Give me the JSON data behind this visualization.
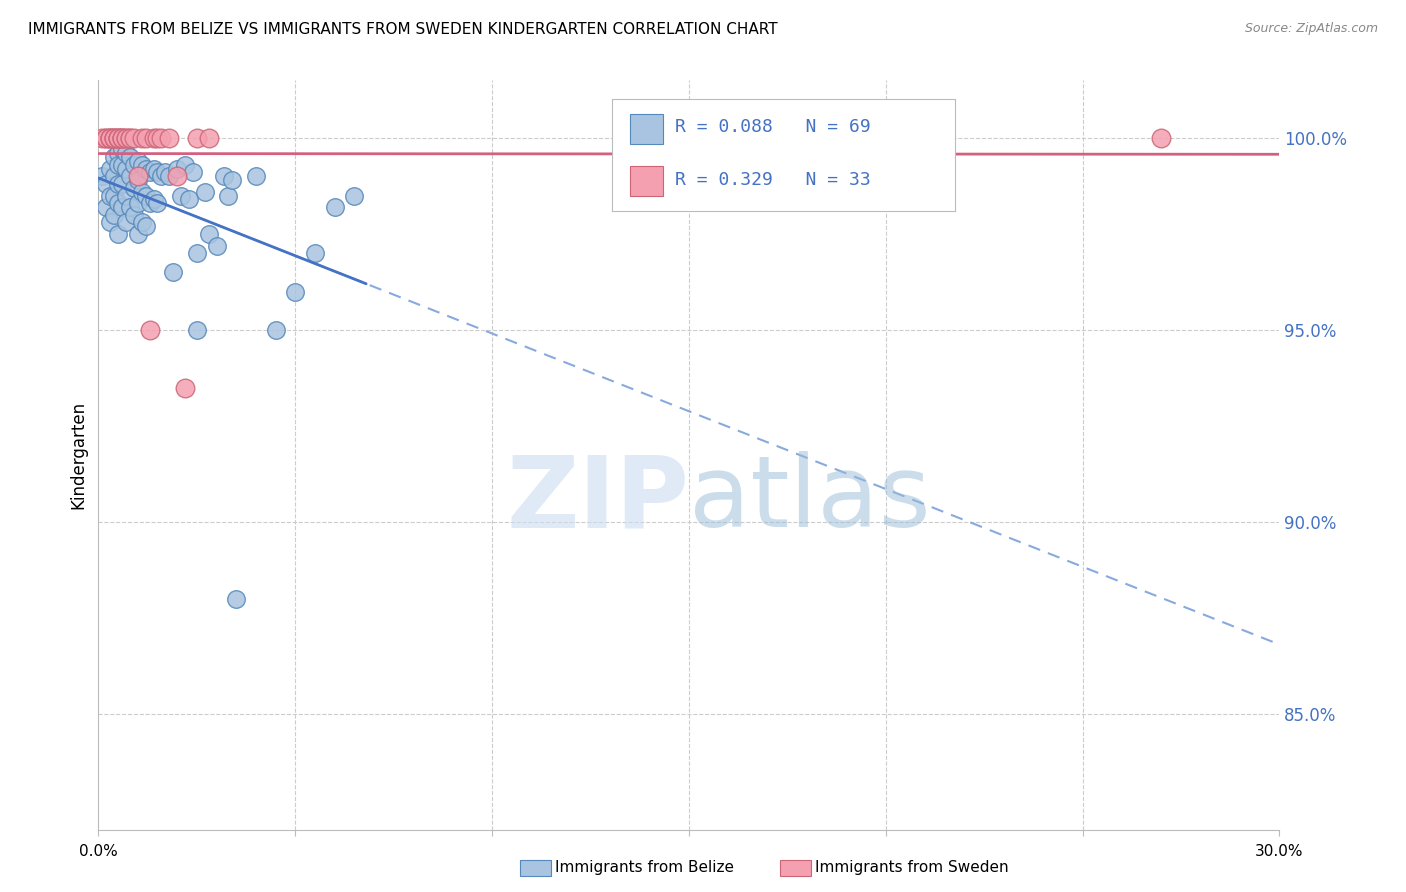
{
  "title": "IMMIGRANTS FROM BELIZE VS IMMIGRANTS FROM SWEDEN KINDERGARTEN CORRELATION CHART",
  "source": "Source: ZipAtlas.com",
  "ylabel": "Kindergarten",
  "x_range": [
    0.0,
    0.3
  ],
  "y_range": [
    0.82,
    1.015
  ],
  "belize_color": "#a8c4e0",
  "sweden_color": "#f4a0b0",
  "belize_edge": "#5588bb",
  "sweden_edge": "#cc6677",
  "trendline_blue": "#4472c4",
  "trendline_pink": "#d46080",
  "dashed_blue": "#88aadd",
  "background_color": "#ffffff",
  "legend_R_blue": "R = 0.088",
  "legend_N_blue": "N = 69",
  "legend_R_pink": "R = 0.329",
  "legend_N_pink": "N = 33",
  "belize_x": [
    0.001,
    0.002,
    0.002,
    0.003,
    0.003,
    0.003,
    0.004,
    0.004,
    0.004,
    0.004,
    0.005,
    0.005,
    0.005,
    0.005,
    0.005,
    0.006,
    0.006,
    0.006,
    0.006,
    0.007,
    0.007,
    0.007,
    0.007,
    0.008,
    0.008,
    0.008,
    0.009,
    0.009,
    0.009,
    0.01,
    0.01,
    0.01,
    0.01,
    0.011,
    0.011,
    0.011,
    0.012,
    0.012,
    0.012,
    0.013,
    0.013,
    0.014,
    0.014,
    0.015,
    0.015,
    0.016,
    0.017,
    0.018,
    0.019,
    0.02,
    0.021,
    0.022,
    0.023,
    0.024,
    0.025,
    0.025,
    0.027,
    0.028,
    0.03,
    0.032,
    0.033,
    0.034,
    0.035,
    0.04,
    0.045,
    0.05,
    0.055,
    0.06,
    0.065
  ],
  "belize_y": [
    0.99,
    0.988,
    0.982,
    0.992,
    0.985,
    0.978,
    0.995,
    0.99,
    0.985,
    0.98,
    0.996,
    0.993,
    0.988,
    0.983,
    0.975,
    0.997,
    0.993,
    0.988,
    0.982,
    0.996,
    0.992,
    0.985,
    0.978,
    0.995,
    0.99,
    0.982,
    0.993,
    0.987,
    0.98,
    0.994,
    0.989,
    0.983,
    0.975,
    0.993,
    0.986,
    0.978,
    0.992,
    0.985,
    0.977,
    0.991,
    0.983,
    0.992,
    0.984,
    0.991,
    0.983,
    0.99,
    0.991,
    0.99,
    0.965,
    0.992,
    0.985,
    0.993,
    0.984,
    0.991,
    0.95,
    0.97,
    0.986,
    0.975,
    0.972,
    0.99,
    0.985,
    0.989,
    0.88,
    0.99,
    0.95,
    0.96,
    0.97,
    0.982,
    0.985
  ],
  "sweden_x": [
    0.001,
    0.002,
    0.002,
    0.003,
    0.003,
    0.003,
    0.004,
    0.004,
    0.004,
    0.005,
    0.005,
    0.005,
    0.006,
    0.006,
    0.006,
    0.007,
    0.007,
    0.008,
    0.008,
    0.009,
    0.01,
    0.011,
    0.012,
    0.013,
    0.014,
    0.015,
    0.016,
    0.018,
    0.02,
    0.022,
    0.025,
    0.028,
    0.27
  ],
  "sweden_y": [
    1.0,
    1.0,
    1.0,
    1.0,
    1.0,
    1.0,
    1.0,
    1.0,
    1.0,
    1.0,
    1.0,
    1.0,
    1.0,
    1.0,
    1.0,
    1.0,
    1.0,
    1.0,
    1.0,
    1.0,
    0.99,
    1.0,
    1.0,
    0.95,
    1.0,
    1.0,
    1.0,
    1.0,
    0.99,
    0.935,
    1.0,
    1.0,
    1.0
  ]
}
